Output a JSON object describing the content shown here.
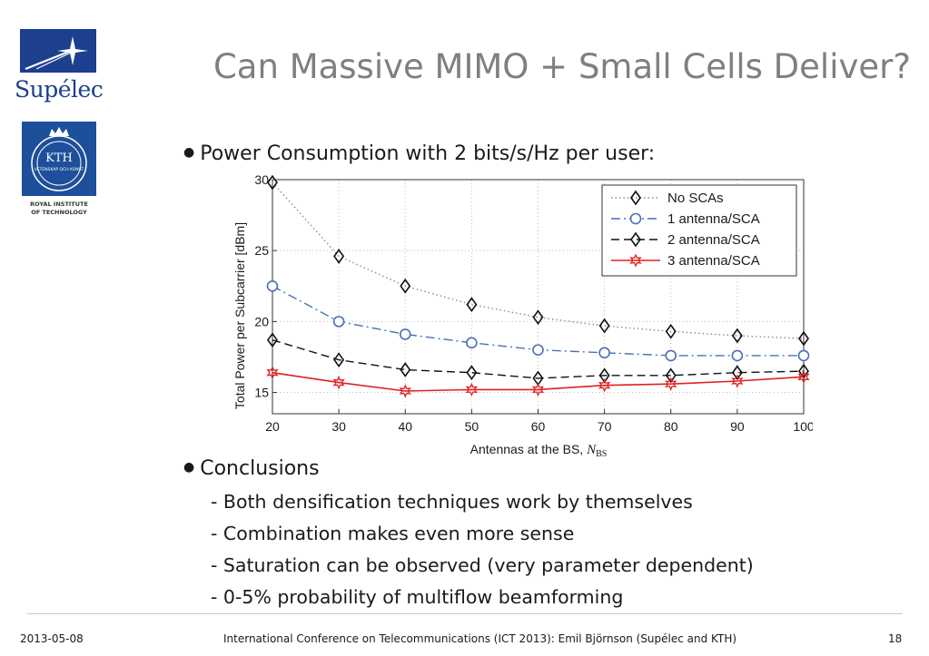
{
  "header": {
    "title": "Can Massive MIMO + Small Cells Deliver?"
  },
  "logos": {
    "supelec": "Supélec",
    "kth_seal": "KTH",
    "kth_seal_text": "VETENSKAP OCH KONST",
    "kth_caption_line1": "ROYAL INSTITUTE",
    "kth_caption_line2": "OF TECHNOLOGY",
    "supelec_color": "#1c3f8e",
    "kth_color": "#1d4f9a"
  },
  "bullets": {
    "power": "Power Consumption with 2 bits/s/Hz per user:",
    "conclusions": "Conclusions",
    "items": [
      "- Both densification techniques work by themselves",
      "- Combination makes even more sense",
      "- Saturation can be observed (very parameter dependent)",
      "- 0-5% probability of multiflow beamforming"
    ]
  },
  "chart_data": {
    "type": "line",
    "xlabel": "Antennas at the BS, ",
    "xlabel_symbol": "N",
    "xlabel_subscript": "BS",
    "ylabel": "Total Power per Subcarrier [dBm]",
    "xlim": [
      20,
      100
    ],
    "ylim": [
      13.5,
      30
    ],
    "x": [
      20,
      30,
      40,
      50,
      60,
      70,
      80,
      90,
      100
    ],
    "x_ticks": [
      "20",
      "30",
      "40",
      "50",
      "60",
      "70",
      "80",
      "90",
      "100"
    ],
    "y_ticks": [
      15,
      20,
      25,
      30
    ],
    "grid": true,
    "legend_position": "top-right",
    "series": [
      {
        "name": "No SCAs",
        "values": [
          29.8,
          24.6,
          22.5,
          21.2,
          20.3,
          19.7,
          19.3,
          19.0,
          18.8
        ],
        "color": "#8c8c8c",
        "dash": "dotted",
        "marker": "diamond"
      },
      {
        "name": "1 antenna/SCA",
        "values": [
          22.5,
          20.0,
          19.1,
          18.5,
          18.0,
          17.8,
          17.6,
          17.6,
          17.6
        ],
        "color": "#4a6fb5",
        "dash": "dashdot",
        "marker": "circle"
      },
      {
        "name": "2 antenna/SCA",
        "values": [
          18.7,
          17.3,
          16.6,
          16.4,
          16.0,
          16.2,
          16.2,
          16.4,
          16.5
        ],
        "color": "#111111",
        "dash": "dashed",
        "marker": "diamond"
      },
      {
        "name": "3 antenna/SCA",
        "values": [
          16.4,
          15.7,
          15.1,
          15.2,
          15.2,
          15.5,
          15.6,
          15.8,
          16.1
        ],
        "color": "#e02020",
        "dash": "solid",
        "marker": "star"
      }
    ]
  },
  "footer": {
    "date": "2013-05-08",
    "conference": "International Conference on Telecommunications (ICT 2013): Emil Björnson (Supélec and KTH)",
    "page": "18"
  }
}
